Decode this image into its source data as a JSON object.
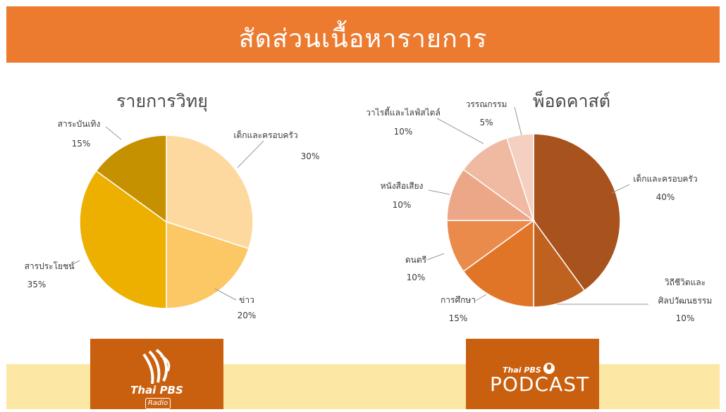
{
  "header": {
    "title": "สัดส่วนเนื้อหารายการ"
  },
  "colors": {
    "header_bg": "#ec7b30",
    "footer_bg": "#fce7a4",
    "logo_bg": "#c9600f"
  },
  "logos": {
    "radio": {
      "brand": "Thai PBS",
      "sub": "Radio"
    },
    "podcast": {
      "brand": "Thai PBS",
      "word": "PODCAST"
    }
  },
  "chart_data": [
    {
      "type": "pie",
      "title": "รายการวิทยุ",
      "slices": [
        {
          "label": "เด็กและครอบครัว",
          "value": 30,
          "value_label": "30%",
          "color": "#fdd9a0"
        },
        {
          "label": "ข่าว",
          "value": 20,
          "value_label": "20%",
          "color": "#fcc865"
        },
        {
          "label": "สารประโยชน์",
          "value": 35,
          "value_label": "35%",
          "color": "#edb000"
        },
        {
          "label": "สาระบันเทิง",
          "value": 15,
          "value_label": "15%",
          "color": "#c59100"
        }
      ]
    },
    {
      "type": "pie",
      "title": "พ็อดคาสต์",
      "slices": [
        {
          "label": "เด็กและครอบครัว",
          "value": 40,
          "value_label": "40%",
          "color": "#a8531d"
        },
        {
          "label": "วิถีชีวิตและศิลปวัฒนธรรม",
          "value": 10,
          "value_label": "10%",
          "color": "#c0621f"
        },
        {
          "label": "การศึกษา",
          "value": 15,
          "value_label": "15%",
          "color": "#e07528"
        },
        {
          "label": "ดนตรี",
          "value": 10,
          "value_label": "10%",
          "color": "#ea8a4b"
        },
        {
          "label": "หนังสือเสียง",
          "value": 10,
          "value_label": "10%",
          "color": "#eba788"
        },
        {
          "label": "วาไรตี้และไลฟ์สไตล์",
          "value": 10,
          "value_label": "10%",
          "color": "#f0b9a2"
        },
        {
          "label": "วรรณกรรม",
          "value": 5,
          "value_label": "5%",
          "color": "#f5cfc0"
        }
      ]
    }
  ]
}
